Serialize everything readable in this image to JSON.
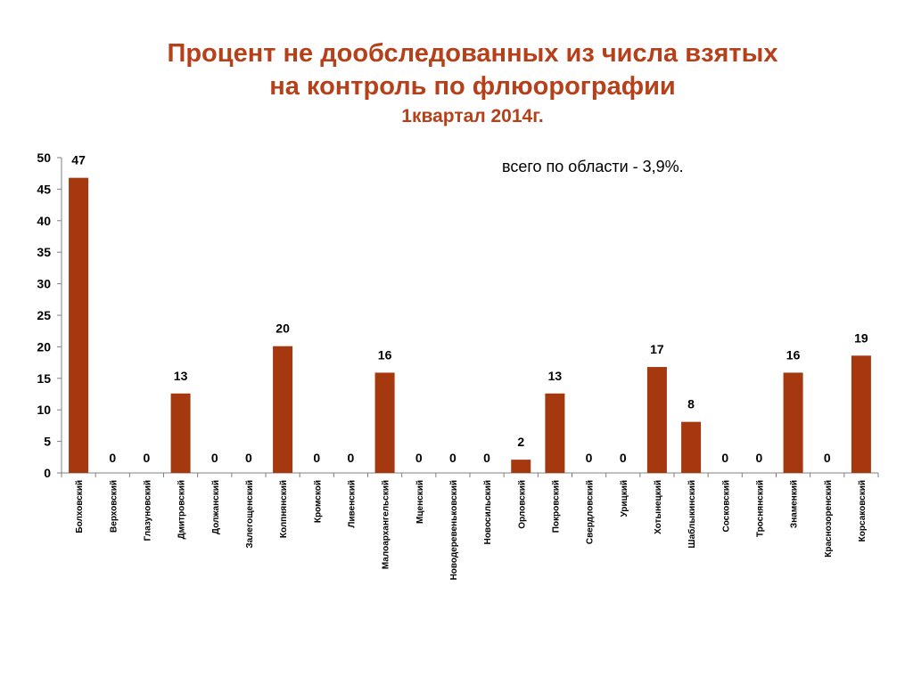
{
  "chart_data": {
    "type": "bar",
    "title_lines": [
      "Процент не дообследованных из числа взятых",
      "на контроль по флюорографии"
    ],
    "subtitle": "1квартал 2014г.",
    "annotation": "всего по области - 3,9%.",
    "xlabel": "",
    "ylabel": "",
    "ylim": [
      0,
      50
    ],
    "yticks": [
      "0",
      "5",
      "10",
      "15",
      "20",
      "25",
      "30",
      "35",
      "40",
      "45",
      "50"
    ],
    "categories": [
      "Болховский",
      "Верховский",
      "Глазуновский",
      "Дмитровский",
      "Должанский",
      "Залегощенский",
      "Колпнянский",
      "Кромской",
      "Ливенский",
      "Малоархангельский",
      "Мценский",
      "Новодеревеньковский",
      "Новосильский",
      "Орловский",
      "Покровский",
      "Свердловский",
      "Урицкий",
      "Хотынецкий",
      "Шаблыкинский",
      "Сосковский",
      "Троснянский",
      "Знаменкий",
      "Краснозоренский",
      "Корсаковский"
    ],
    "values": [
      46.8,
      0,
      0,
      12.6,
      0,
      0,
      20.1,
      0,
      0,
      15.9,
      0,
      0,
      0,
      2.1,
      12.6,
      0,
      0,
      16.8,
      8.1,
      0,
      0,
      15.9,
      0,
      18.6
    ],
    "data_labels": [
      "47",
      "0",
      "0",
      "13",
      "0",
      "0",
      "20",
      "0",
      "0",
      "16",
      "0",
      "0",
      "0",
      "2",
      "13",
      "0",
      "0",
      "17",
      "8",
      "0",
      "0",
      "16",
      "0",
      "19"
    ],
    "grid": false,
    "legend": "none",
    "colors": {
      "bar": "#a5380e",
      "title": "#b5401a",
      "axis": "#808080"
    }
  }
}
